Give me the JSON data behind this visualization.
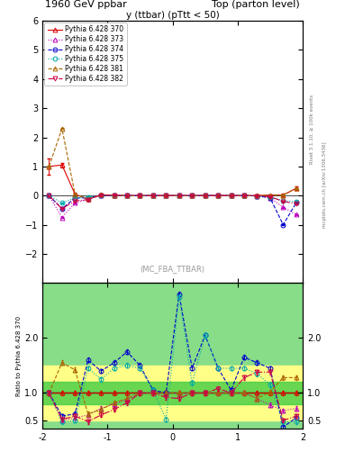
{
  "title_left": "1960 GeV ppbar",
  "title_right": "Top (parton level)",
  "plot_title": "y (ttbar) (pTtt < 50)",
  "annotation": "(MC_FBA_TTBAR)",
  "right_label_top": "Rivet 3.1.10, ≥ 100k events",
  "right_label_bottom": "mcplots.cern.ch [arXiv:1306.3436]",
  "ylabel_ratio": "Ratio to Pythia 6.428 370",
  "xlim": [
    -2.0,
    2.0
  ],
  "ylim_main": [
    -3.0,
    6.0
  ],
  "ylim_ratio": [
    0.35,
    3.0
  ],
  "ratio_yticks": [
    0.5,
    1.0,
    2.0
  ],
  "main_yticks": [
    -2,
    -1,
    0,
    1,
    2,
    3,
    4,
    5,
    6
  ],
  "series": [
    {
      "label": "Pythia 6.428 370",
      "color": "#dd0000",
      "marker": "^",
      "linestyle": "-",
      "markersize": 3.5,
      "fillstyle": "none"
    },
    {
      "label": "Pythia 6.428 373",
      "color": "#bb00bb",
      "marker": "^",
      "linestyle": ":",
      "markersize": 3.5,
      "fillstyle": "none"
    },
    {
      "label": "Pythia 6.428 374",
      "color": "#0000cc",
      "marker": "o",
      "linestyle": "--",
      "markersize": 3.5,
      "fillstyle": "none"
    },
    {
      "label": "Pythia 6.428 375",
      "color": "#00aaaa",
      "marker": "o",
      "linestyle": ":",
      "markersize": 3.5,
      "fillstyle": "none"
    },
    {
      "label": "Pythia 6.428 381",
      "color": "#aa6600",
      "marker": "^",
      "linestyle": "--",
      "markersize": 3.5,
      "fillstyle": "none"
    },
    {
      "label": "Pythia 6.428 382",
      "color": "#cc0044",
      "marker": "v",
      "linestyle": "-.",
      "markersize": 3.5,
      "fillstyle": "none"
    }
  ],
  "xbins": [
    -2.0,
    -1.8,
    -1.6,
    -1.4,
    -1.2,
    -1.0,
    -0.8,
    -0.6,
    -0.4,
    -0.2,
    0.0,
    0.2,
    0.4,
    0.6,
    0.8,
    1.0,
    1.2,
    1.4,
    1.6,
    1.8,
    2.0
  ],
  "main_data_370": [
    1.0,
    1.05,
    0.05,
    -0.12,
    0.03,
    0.01,
    0.0,
    0.0,
    0.0,
    0.0,
    0.0,
    0.0,
    0.0,
    0.0,
    0.0,
    0.0,
    0.0,
    0.02,
    0.02,
    0.25,
    1.0
  ],
  "main_data_373": [
    0.0,
    -0.75,
    -0.25,
    -0.12,
    0.02,
    0.01,
    0.0,
    0.0,
    0.0,
    0.0,
    0.0,
    0.0,
    0.0,
    0.0,
    0.0,
    0.0,
    -0.01,
    -0.08,
    -0.4,
    -0.65,
    0.0
  ],
  "main_data_374": [
    0.0,
    -0.45,
    -0.08,
    -0.08,
    0.01,
    0.0,
    0.0,
    0.0,
    0.0,
    0.0,
    0.0,
    0.0,
    0.0,
    0.0,
    0.0,
    0.0,
    -0.01,
    -0.08,
    -1.0,
    -0.25,
    0.0
  ],
  "main_data_375": [
    0.0,
    -0.25,
    -0.08,
    -0.05,
    0.01,
    0.0,
    0.0,
    0.0,
    0.0,
    0.0,
    0.0,
    0.0,
    0.0,
    0.0,
    0.0,
    0.0,
    -0.01,
    -0.04,
    -0.18,
    -0.2,
    0.0
  ],
  "main_data_381": [
    1.0,
    2.3,
    0.05,
    -0.12,
    0.03,
    0.01,
    0.0,
    0.0,
    0.0,
    0.0,
    0.0,
    0.0,
    0.0,
    0.0,
    0.0,
    0.0,
    0.0,
    0.02,
    0.02,
    0.25,
    1.0
  ],
  "main_data_382": [
    0.0,
    -0.45,
    -0.18,
    -0.14,
    0.02,
    0.01,
    0.0,
    0.0,
    0.0,
    0.0,
    0.0,
    0.0,
    0.0,
    0.0,
    0.0,
    0.0,
    -0.01,
    -0.04,
    -0.2,
    -0.28,
    0.0
  ],
  "main_yerr_370": [
    0.28,
    0.08,
    0.04,
    0.03,
    0.02,
    0.02,
    0.01,
    0.01,
    0.01,
    0.01,
    0.01,
    0.01,
    0.01,
    0.01,
    0.01,
    0.01,
    0.01,
    0.02,
    0.04,
    0.06,
    0.35
  ],
  "ratio_bg_green": 0.2,
  "ratio_bg_yellow": 0.5,
  "ratio_xbins": [
    -2.0,
    -1.8,
    -1.6,
    -1.4,
    -1.2,
    -1.0,
    -0.8,
    -0.6,
    -0.4,
    -0.2,
    0.0,
    0.2,
    0.4,
    0.6,
    0.8,
    1.0,
    1.2,
    1.4,
    1.6,
    1.8,
    2.0
  ],
  "ratio_green_lo": [
    0.8,
    0.8,
    0.8,
    0.8,
    0.8,
    0.8,
    0.8,
    0.8,
    0.8,
    0.8,
    0.8,
    0.8,
    0.8,
    0.8,
    0.8,
    0.8,
    0.8,
    0.8,
    0.8,
    0.8
  ],
  "ratio_green_hi": [
    1.2,
    1.2,
    1.2,
    1.2,
    1.2,
    1.2,
    1.2,
    1.2,
    1.2,
    1.2,
    1.2,
    1.2,
    1.2,
    1.2,
    1.2,
    1.2,
    1.2,
    1.2,
    1.2,
    1.2
  ],
  "ratio_yellow_lo": [
    0.5,
    0.5,
    0.5,
    0.5,
    0.5,
    0.5,
    0.5,
    0.5,
    0.5,
    0.5,
    0.5,
    0.5,
    0.5,
    0.5,
    0.5,
    0.5,
    0.5,
    0.5,
    0.5,
    0.5
  ],
  "ratio_yellow_hi": [
    1.5,
    1.5,
    1.5,
    1.5,
    1.5,
    1.5,
    1.5,
    1.5,
    1.5,
    1.5,
    1.5,
    1.5,
    1.5,
    1.5,
    1.5,
    1.5,
    1.5,
    1.5,
    1.5,
    1.5
  ],
  "ratio_373": [
    1.0,
    0.5,
    0.55,
    0.6,
    0.72,
    0.8,
    0.88,
    1.0,
    1.0,
    1.0,
    1.0,
    1.0,
    1.0,
    1.0,
    1.0,
    1.0,
    0.9,
    0.78,
    0.68,
    0.72,
    1.0
  ],
  "ratio_374": [
    1.0,
    0.58,
    0.62,
    1.6,
    1.4,
    1.55,
    1.75,
    1.5,
    1.05,
    1.0,
    2.8,
    1.45,
    2.05,
    1.45,
    1.05,
    1.65,
    1.55,
    1.45,
    0.38,
    0.55,
    1.0
  ],
  "ratio_375": [
    1.0,
    0.48,
    0.5,
    1.45,
    1.25,
    1.45,
    1.5,
    1.45,
    1.05,
    0.52,
    2.75,
    1.18,
    2.05,
    1.45,
    1.45,
    1.45,
    1.35,
    1.15,
    0.48,
    0.48,
    1.0
  ],
  "ratio_381": [
    1.0,
    1.55,
    1.42,
    0.62,
    0.7,
    0.82,
    0.9,
    1.0,
    1.0,
    1.0,
    1.0,
    1.0,
    1.0,
    1.0,
    1.0,
    1.0,
    0.9,
    1.02,
    1.28,
    1.28,
    1.0
  ],
  "ratio_382": [
    1.0,
    0.52,
    0.58,
    0.48,
    0.6,
    0.7,
    0.82,
    1.0,
    1.0,
    0.92,
    0.9,
    1.0,
    1.0,
    1.08,
    1.0,
    1.28,
    1.38,
    1.38,
    0.5,
    0.58,
    1.0
  ],
  "background_color": "#ffffff"
}
